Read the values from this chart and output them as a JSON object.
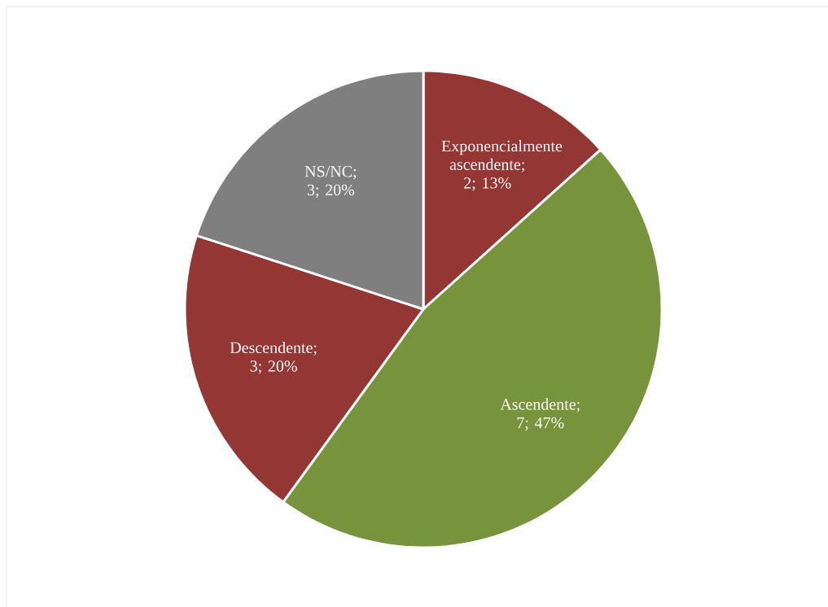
{
  "chart_data": {
    "type": "pie",
    "categories": [
      "Exponencialmente ascendente",
      "Ascendente",
      "Descendente",
      "NS/NC"
    ],
    "values": [
      2,
      7,
      3,
      3
    ],
    "colors": [
      "#943634",
      "#77933c",
      "#943634",
      "#7f7f7f"
    ],
    "value_labels": [
      "; 2; 13%",
      "; 7; 47%",
      "; 3; 20%",
      "; 3; 20%"
    ]
  }
}
